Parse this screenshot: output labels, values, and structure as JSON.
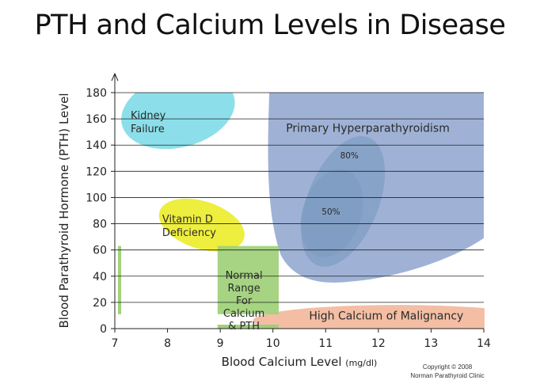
{
  "title": "PTH and Calcium Levels in Disease",
  "copyright": {
    "line1": "Copyright © 2008",
    "line2": "Norman Parathyroid Clinic"
  },
  "chart_data": {
    "type": "scatter",
    "title": "PTH and Calcium Levels in Disease",
    "xlabel": "Blood Calcium Level",
    "xunit": "(mg/dl)",
    "ylabel": "Blood Parathyroid Hormone  (PTH) Level",
    "xlim": [
      7,
      14
    ],
    "ylim": [
      0,
      180
    ],
    "xticks": [
      "7",
      "8",
      "9",
      "10",
      "11",
      "12",
      "13",
      "14"
    ],
    "yticks": [
      "0",
      "20",
      "40",
      "60",
      "80",
      "100",
      "120",
      "140",
      "160",
      "180"
    ],
    "grid": "horizontal",
    "colors": {
      "kidney": "#7fdce8",
      "hyperpara": "#8ea5cf",
      "hyperpara_inner": "#7f9dc2",
      "vitamin_d": "#ecec2a",
      "normal": "#9ccf74",
      "malignancy": "#f2b79a"
    },
    "regions": [
      {
        "label_lines": [
          "Kidney",
          "Failure"
        ],
        "label_x": 7.3,
        "label_y": 160
      },
      {
        "label": "Primary Hyperparathyroidism",
        "label_x": 11.8,
        "label_y": 150
      },
      {
        "label": "80%",
        "label_x": 11.45,
        "label_y": 130
      },
      {
        "label": "50%",
        "label_x": 11.1,
        "label_y": 87
      },
      {
        "label_lines": [
          "Vitamin D",
          "Deficiency"
        ],
        "label_x": 7.9,
        "label_y": 81
      },
      {
        "label_lines": [
          "Normal",
          "Range",
          "For",
          "Calcium",
          "& PTH"
        ],
        "label_x": 9.45,
        "label_y": 38
      },
      {
        "label": "High Calcium of Malignancy",
        "label_x": 12.15,
        "label_y": 7
      }
    ]
  }
}
